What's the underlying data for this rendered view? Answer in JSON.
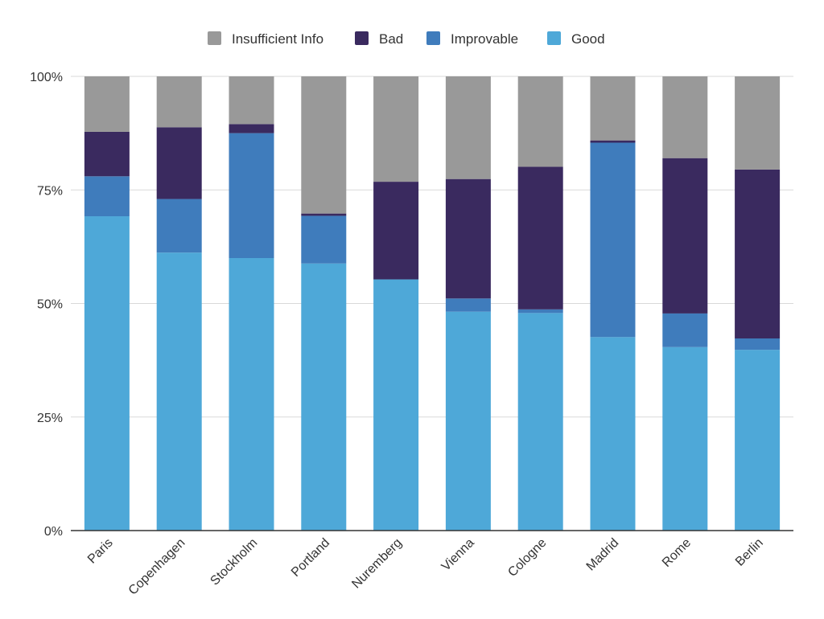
{
  "chart_data": {
    "type": "bar",
    "stacked": true,
    "percent_stacked": true,
    "title": "",
    "xlabel": "",
    "ylabel": "",
    "ylim": [
      0,
      100
    ],
    "y_ticks": [
      0,
      25,
      50,
      75,
      100
    ],
    "y_tick_labels": [
      "0%",
      "25%",
      "50%",
      "75%",
      "100%"
    ],
    "grid": true,
    "legend_position": "top",
    "categories": [
      "Paris",
      "Copenhagen",
      "Stockholm",
      "Portland",
      "Nuremberg",
      "Vienna",
      "Cologne",
      "Madrid",
      "Rome",
      "Berlin"
    ],
    "series": [
      {
        "name": "Good",
        "color": "#4ea8d8",
        "values": [
          69.2,
          61.2,
          60.0,
          58.8,
          55.3,
          48.2,
          47.9,
          42.6,
          40.4,
          39.8
        ]
      },
      {
        "name": "Improvable",
        "color": "#3f7cbc",
        "values": [
          8.8,
          11.8,
          27.5,
          10.5,
          0,
          2.9,
          0.8,
          42.8,
          7.4,
          2.5
        ]
      },
      {
        "name": "Bad",
        "color": "#3a2a5f",
        "values": [
          9.8,
          15.8,
          2.0,
          0.5,
          21.5,
          26.3,
          31.4,
          0.5,
          34.2,
          37.2
        ]
      },
      {
        "name": "Insufficient Info",
        "color": "#999999",
        "values": [
          12.2,
          11.2,
          10.5,
          30.2,
          23.2,
          22.6,
          19.9,
          14.1,
          18.0,
          20.5
        ]
      }
    ],
    "legend_order": [
      "Insufficient Info",
      "Bad",
      "Improvable",
      "Good"
    ]
  }
}
